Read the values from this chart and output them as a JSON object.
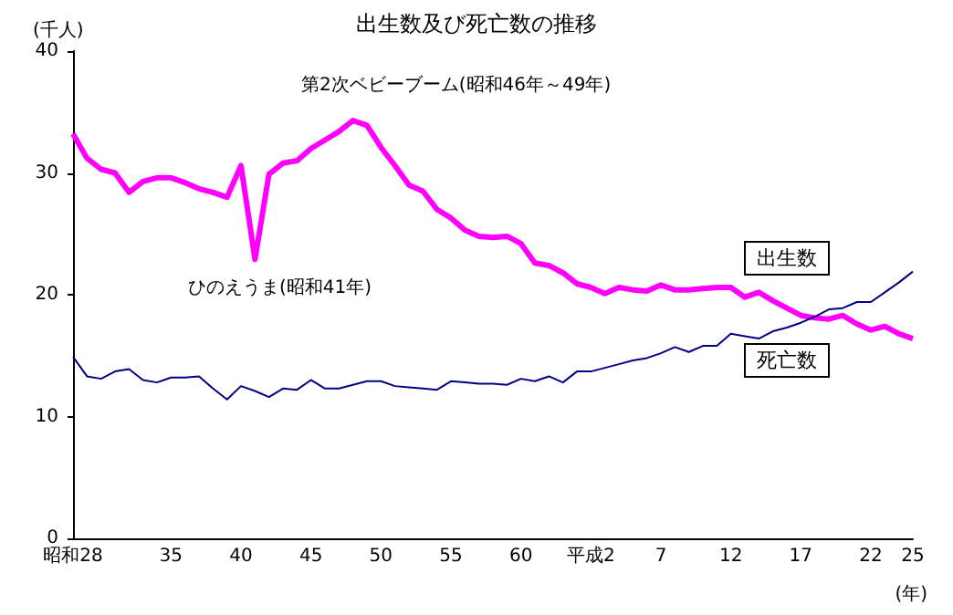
{
  "chart_data": {
    "type": "line",
    "title": "出生数及び死亡数の推移",
    "xlabel": "(年)",
    "ylabel": "(千人)",
    "categories": [
      "昭和28",
      null,
      null,
      null,
      null,
      null,
      null,
      "35",
      null,
      null,
      null,
      null,
      "40",
      null,
      null,
      null,
      null,
      "45",
      null,
      null,
      null,
      null,
      "50",
      null,
      null,
      null,
      null,
      "55",
      null,
      null,
      null,
      null,
      "60",
      null,
      null,
      null,
      null,
      "平成2",
      null,
      null,
      null,
      null,
      "7",
      null,
      null,
      null,
      null,
      "12",
      null,
      null,
      null,
      null,
      "17",
      null,
      null,
      null,
      null,
      "22",
      null,
      null,
      "25"
    ],
    "series": [
      {
        "name": "出生数",
        "color": "#ff00ff",
        "values": [
          33.2,
          31.2,
          30.3,
          30.0,
          28.4,
          29.3,
          29.6,
          29.6,
          29.2,
          28.7,
          28.4,
          28.0,
          30.6,
          22.9,
          29.9,
          30.8,
          31.0,
          32.0,
          32.7,
          33.4,
          34.3,
          33.9,
          32.1,
          30.6,
          29.0,
          28.5,
          27.0,
          26.3,
          25.3,
          24.8,
          24.7,
          24.8,
          24.2,
          22.6,
          22.4,
          21.8,
          20.9,
          20.6,
          20.1,
          20.6,
          20.4,
          20.3,
          20.8,
          20.4,
          20.4,
          20.5,
          20.6,
          20.6,
          19.8,
          20.2,
          19.5,
          18.9,
          18.3,
          18.1,
          18.0,
          18.3,
          17.6,
          17.1,
          17.4,
          16.8,
          16.4
        ]
      },
      {
        "name": "死亡数",
        "color": "#000080",
        "values": [
          14.9,
          13.3,
          13.1,
          13.7,
          13.9,
          13.0,
          12.8,
          13.2,
          13.2,
          13.3,
          12.3,
          11.4,
          12.5,
          12.1,
          11.6,
          12.3,
          12.2,
          13.0,
          12.3,
          12.3,
          12.6,
          12.9,
          12.9,
          12.5,
          12.4,
          12.3,
          12.2,
          12.9,
          12.8,
          12.7,
          12.7,
          12.6,
          13.1,
          12.9,
          13.3,
          12.8,
          13.7,
          13.7,
          14.0,
          14.3,
          14.6,
          14.8,
          15.2,
          15.7,
          15.3,
          15.8,
          15.8,
          16.8,
          16.6,
          16.4,
          17.0,
          17.3,
          17.7,
          18.2,
          18.8,
          18.9,
          19.4,
          19.4,
          20.2,
          21.0,
          21.9
        ]
      }
    ],
    "annotations": [
      "第2次ベビーブーム(昭和46年～49年)",
      "ひのえうま(昭和41年)"
    ],
    "ylim": [
      0,
      40
    ],
    "yticks": [
      0,
      10,
      20,
      30,
      40
    ],
    "grid": false,
    "marker": "none",
    "line_style": "solid"
  }
}
